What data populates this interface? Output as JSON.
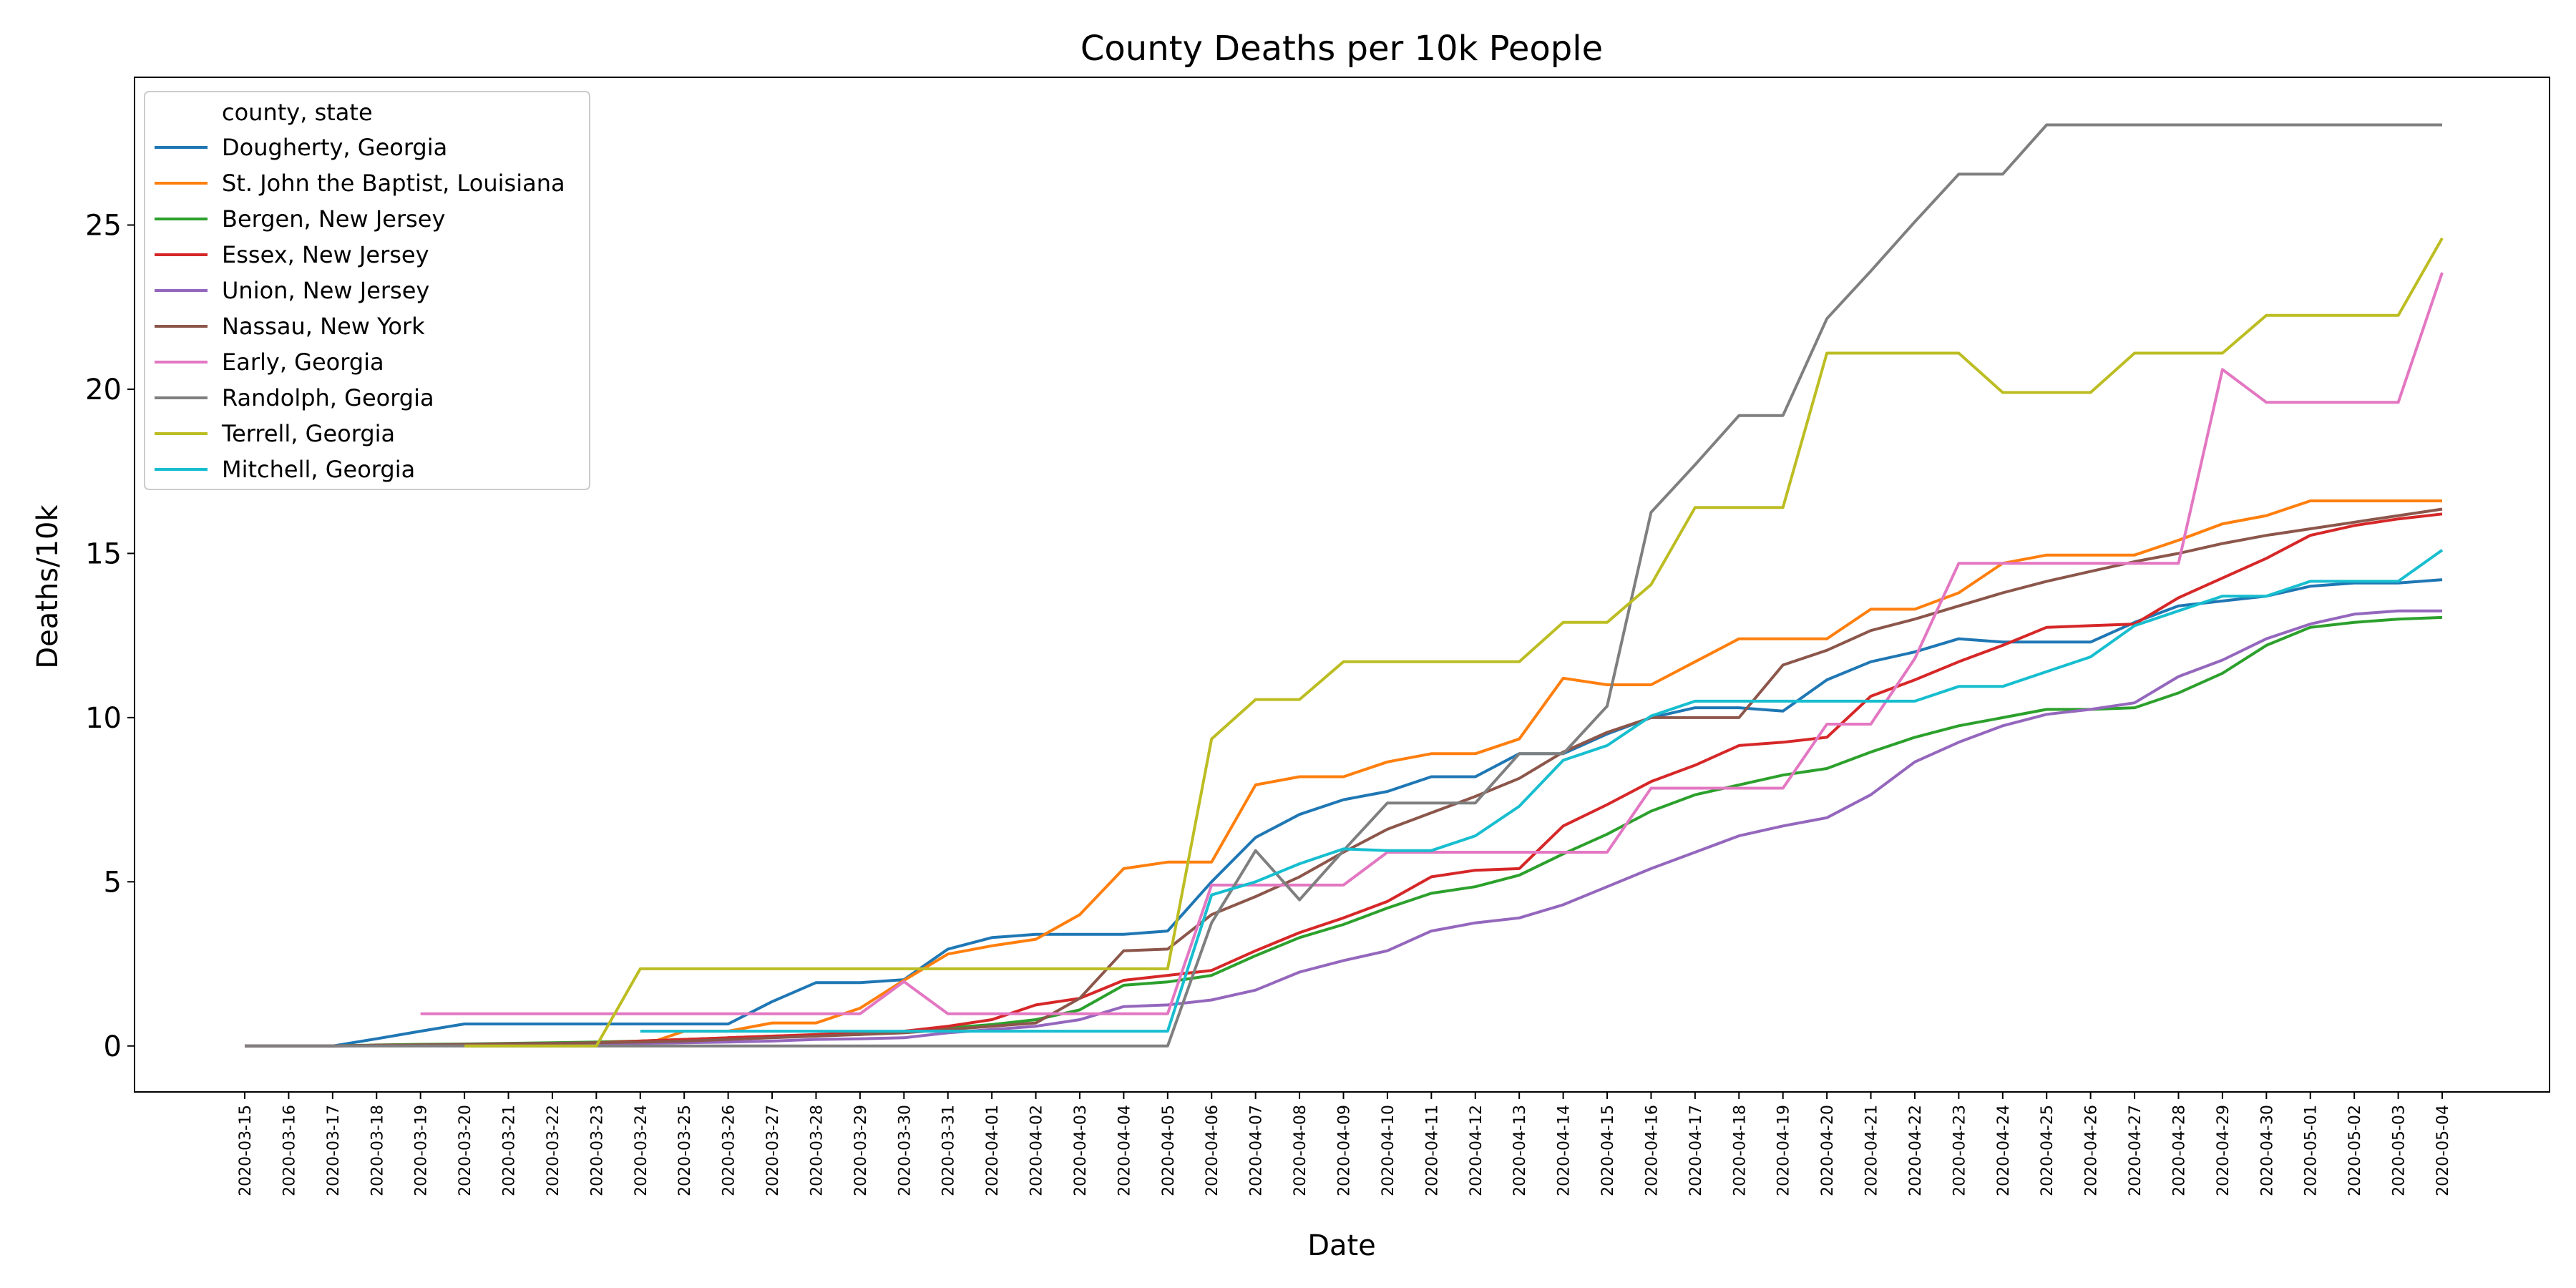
{
  "chart_data": {
    "type": "line",
    "title": "County Deaths per 10k People",
    "xlabel": "Date",
    "ylabel": "Deaths/10k",
    "ylim": [
      -1.4,
      29.5
    ],
    "yticks": [
      0,
      5,
      10,
      15,
      20,
      25
    ],
    "grid": false,
    "legend": {
      "title": "county, state",
      "placement": "top-left"
    },
    "x": [
      "2020-03-15",
      "2020-03-16",
      "2020-03-17",
      "2020-03-18",
      "2020-03-19",
      "2020-03-20",
      "2020-03-21",
      "2020-03-22",
      "2020-03-23",
      "2020-03-24",
      "2020-03-25",
      "2020-03-26",
      "2020-03-27",
      "2020-03-28",
      "2020-03-29",
      "2020-03-30",
      "2020-03-31",
      "2020-04-01",
      "2020-04-02",
      "2020-04-03",
      "2020-04-04",
      "2020-04-05",
      "2020-04-06",
      "2020-04-07",
      "2020-04-08",
      "2020-04-09",
      "2020-04-10",
      "2020-04-11",
      "2020-04-12",
      "2020-04-13",
      "2020-04-14",
      "2020-04-15",
      "2020-04-16",
      "2020-04-17",
      "2020-04-18",
      "2020-04-19",
      "2020-04-20",
      "2020-04-21",
      "2020-04-22",
      "2020-04-23",
      "2020-04-24",
      "2020-04-25",
      "2020-04-26",
      "2020-04-27",
      "2020-04-28",
      "2020-04-29",
      "2020-04-30",
      "2020-05-01",
      "2020-05-02",
      "2020-05-03",
      "2020-05-04"
    ],
    "series": [
      {
        "name": "Dougherty, Georgia",
        "color": "#1f77b4",
        "values": [
          0,
          0,
          0,
          0.22,
          0.45,
          0.67,
          0.67,
          0.67,
          0.67,
          0.67,
          0.67,
          0.67,
          1.35,
          1.93,
          1.93,
          2.02,
          2.95,
          3.3,
          3.4,
          3.4,
          3.4,
          3.5,
          5.0,
          6.35,
          7.05,
          7.5,
          7.75,
          8.2,
          8.2,
          8.9,
          8.9,
          9.5,
          10.0,
          10.3,
          10.3,
          10.2,
          11.15,
          11.7,
          12.0,
          12.4,
          12.3,
          12.3,
          12.3,
          12.9,
          13.4,
          13.55,
          13.7,
          14.0,
          14.1,
          14.1,
          14.2
        ]
      },
      {
        "name": "St. John the Baptist, Louisiana",
        "color": "#ff7f0e",
        "values": [
          null,
          null,
          null,
          null,
          null,
          null,
          null,
          null,
          null,
          0,
          0.45,
          0.45,
          0.7,
          0.7,
          1.15,
          2.0,
          2.8,
          3.05,
          3.25,
          4.0,
          5.4,
          5.6,
          5.6,
          7.95,
          8.2,
          8.2,
          8.65,
          8.9,
          8.9,
          9.35,
          11.2,
          11.0,
          11.0,
          11.7,
          12.4,
          12.4,
          12.4,
          13.3,
          13.3,
          13.8,
          14.7,
          14.95,
          14.95,
          14.95,
          15.4,
          15.9,
          16.15,
          16.6,
          16.6,
          16.6,
          16.6
        ]
      },
      {
        "name": "Bergen, New Jersey",
        "color": "#2ca02c",
        "values": [
          0,
          0,
          0,
          0.03,
          0.05,
          0.06,
          0.08,
          0.1,
          0.12,
          0.15,
          0.2,
          0.25,
          0.3,
          0.33,
          0.35,
          0.45,
          0.55,
          0.65,
          0.8,
          1.1,
          1.85,
          1.95,
          2.15,
          2.75,
          3.3,
          3.7,
          4.2,
          4.65,
          4.85,
          5.2,
          5.85,
          6.45,
          7.15,
          7.65,
          7.95,
          8.25,
          8.45,
          8.95,
          9.4,
          9.75,
          10.0,
          10.25,
          10.25,
          10.3,
          10.75,
          11.35,
          12.2,
          12.75,
          12.9,
          13.0,
          13.05
        ]
      },
      {
        "name": "Essex, New Jersey",
        "color": "#d62728",
        "values": [
          0,
          0,
          0,
          0.02,
          0.03,
          0.04,
          0.05,
          0.07,
          0.1,
          0.15,
          0.2,
          0.25,
          0.3,
          0.35,
          0.4,
          0.45,
          0.6,
          0.8,
          1.25,
          1.45,
          2.0,
          2.15,
          2.3,
          2.9,
          3.45,
          3.9,
          4.4,
          5.15,
          5.35,
          5.4,
          6.7,
          7.35,
          8.05,
          8.55,
          9.15,
          9.25,
          9.4,
          10.65,
          11.15,
          11.7,
          12.2,
          12.75,
          12.8,
          12.85,
          13.65,
          14.25,
          14.85,
          15.55,
          15.85,
          16.05,
          16.2
        ]
      },
      {
        "name": "Union, New Jersey",
        "color": "#9467bd",
        "values": [
          0,
          0,
          0,
          0.01,
          0.02,
          0.03,
          0.04,
          0.05,
          0.06,
          0.08,
          0.1,
          0.12,
          0.15,
          0.2,
          0.22,
          0.25,
          0.4,
          0.5,
          0.6,
          0.8,
          1.2,
          1.25,
          1.4,
          1.7,
          2.25,
          2.6,
          2.9,
          3.5,
          3.75,
          3.9,
          4.3,
          4.85,
          5.4,
          5.9,
          6.4,
          6.7,
          6.95,
          7.65,
          8.65,
          9.25,
          9.75,
          10.1,
          10.25,
          10.45,
          11.25,
          11.75,
          12.4,
          12.85,
          13.15,
          13.25,
          13.25
        ]
      },
      {
        "name": "Nassau, New York",
        "color": "#8c564b",
        "values": [
          0,
          0,
          0,
          0.02,
          0.03,
          0.05,
          0.07,
          0.08,
          0.1,
          0.12,
          0.15,
          0.2,
          0.25,
          0.3,
          0.35,
          0.4,
          0.5,
          0.6,
          0.7,
          1.45,
          2.9,
          2.95,
          4.0,
          4.55,
          5.15,
          5.9,
          6.6,
          7.1,
          7.6,
          8.15,
          8.95,
          9.55,
          10.0,
          10.0,
          10.0,
          11.6,
          12.05,
          12.65,
          13.0,
          13.4,
          13.8,
          14.15,
          14.45,
          14.75,
          15.0,
          15.3,
          15.55,
          15.75,
          15.95,
          16.15,
          16.35
        ]
      },
      {
        "name": "Early, Georgia",
        "color": "#e377c2",
        "values": [
          null,
          null,
          null,
          null,
          0.98,
          0.98,
          0.98,
          0.98,
          0.98,
          0.98,
          0.98,
          0.98,
          0.98,
          0.98,
          0.98,
          1.96,
          0.98,
          0.98,
          0.98,
          0.98,
          0.98,
          0.98,
          4.9,
          4.9,
          4.9,
          4.9,
          5.9,
          5.9,
          5.9,
          5.9,
          5.9,
          5.9,
          7.85,
          7.85,
          7.85,
          7.85,
          9.8,
          9.8,
          11.8,
          14.7,
          14.7,
          14.7,
          14.7,
          14.7,
          14.7,
          20.6,
          19.6,
          19.6,
          19.6,
          19.6,
          23.55
        ]
      },
      {
        "name": "Randolph, Georgia",
        "color": "#7f7f7f",
        "values": [
          0,
          0,
          0,
          0,
          0,
          0,
          0,
          0,
          0,
          0,
          0,
          0,
          0,
          0,
          0,
          0,
          0,
          0,
          0,
          0,
          0,
          0,
          3.75,
          5.95,
          4.45,
          5.95,
          7.4,
          7.4,
          7.4,
          8.9,
          8.9,
          10.35,
          16.25,
          17.7,
          19.2,
          19.2,
          22.15,
          23.6,
          25.1,
          26.55,
          26.55,
          28.05,
          28.05,
          28.05,
          28.05,
          28.05,
          28.05,
          28.05,
          28.05,
          28.05,
          28.05
        ]
      },
      {
        "name": "Terrell, Georgia",
        "color": "#bcbd22",
        "values": [
          null,
          null,
          null,
          null,
          null,
          0,
          0,
          0,
          0,
          2.35,
          2.35,
          2.35,
          2.35,
          2.35,
          2.35,
          2.35,
          2.35,
          2.35,
          2.35,
          2.35,
          2.35,
          2.35,
          9.35,
          10.55,
          10.55,
          11.7,
          11.7,
          11.7,
          11.7,
          11.7,
          12.9,
          12.9,
          14.05,
          16.4,
          16.4,
          16.4,
          21.1,
          21.1,
          21.1,
          21.1,
          19.9,
          19.9,
          19.9,
          21.1,
          21.1,
          21.1,
          22.25,
          22.25,
          22.25,
          22.25,
          24.6
        ]
      },
      {
        "name": "Mitchell, Georgia",
        "color": "#17becf",
        "values": [
          null,
          null,
          null,
          null,
          null,
          null,
          null,
          null,
          null,
          0.45,
          0.45,
          0.45,
          0.45,
          0.45,
          0.45,
          0.45,
          0.45,
          0.45,
          0.45,
          0.45,
          0.45,
          0.45,
          4.6,
          5.0,
          5.55,
          6.0,
          5.95,
          5.95,
          6.4,
          7.3,
          8.7,
          9.15,
          10.05,
          10.5,
          10.5,
          10.5,
          10.5,
          10.5,
          10.5,
          10.95,
          10.95,
          11.4,
          11.85,
          12.8,
          13.25,
          13.7,
          13.7,
          14.15,
          14.15,
          14.15,
          15.1
        ]
      }
    ]
  }
}
